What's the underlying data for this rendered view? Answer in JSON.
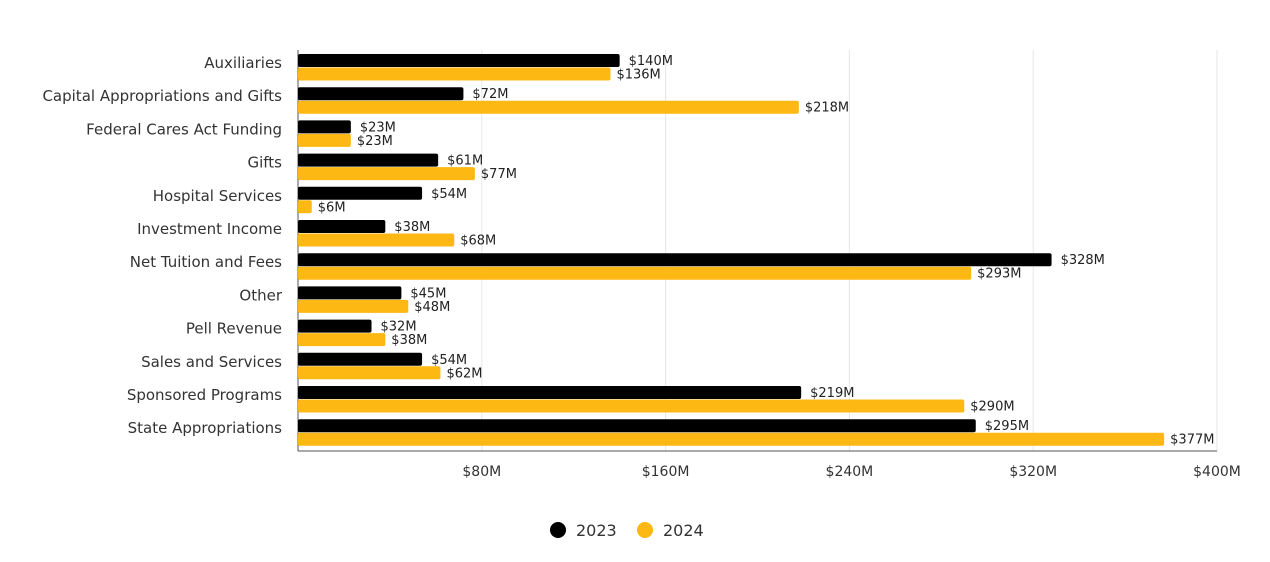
{
  "chart_data": {
    "type": "bar",
    "orientation": "horizontal",
    "categories": [
      "Auxiliaries",
      "Capital Appropriations and Gifts",
      "Federal Cares Act Funding",
      "Gifts",
      "Hospital Services",
      "Investment Income",
      "Net Tuition and Fees",
      "Other",
      "Pell Revenue",
      "Sales and Services",
      "Sponsored Programs",
      "State Appropriations"
    ],
    "series": [
      {
        "name": "2023",
        "color": "#000000",
        "values": [
          140,
          72,
          23,
          61,
          54,
          38,
          328,
          45,
          32,
          54,
          219,
          295
        ],
        "labels": [
          "$140M",
          "$72M",
          "$23M",
          "$61M",
          "$54M",
          "$38M",
          "$328M",
          "$45M",
          "$32M",
          "$54M",
          "$219M",
          "$295M"
        ]
      },
      {
        "name": "2024",
        "color": "#FDB813",
        "values": [
          136,
          218,
          23,
          77,
          6,
          68,
          293,
          48,
          38,
          62,
          290,
          377
        ],
        "labels": [
          "$136M",
          "$218M",
          "$23M",
          "$77M",
          "$6M",
          "$68M",
          "$293M",
          "$48M",
          "$38M",
          "$62M",
          "$290M",
          "$377M"
        ]
      }
    ],
    "xlim": [
      0,
      400
    ],
    "x_ticks": [
      80,
      160,
      240,
      320,
      400
    ],
    "x_tick_labels": [
      "$80M",
      "$160M",
      "$240M",
      "$320M",
      "$400M"
    ],
    "grid": "vertical",
    "legend": "bottom-center",
    "title": "",
    "xlabel": "",
    "ylabel": ""
  }
}
